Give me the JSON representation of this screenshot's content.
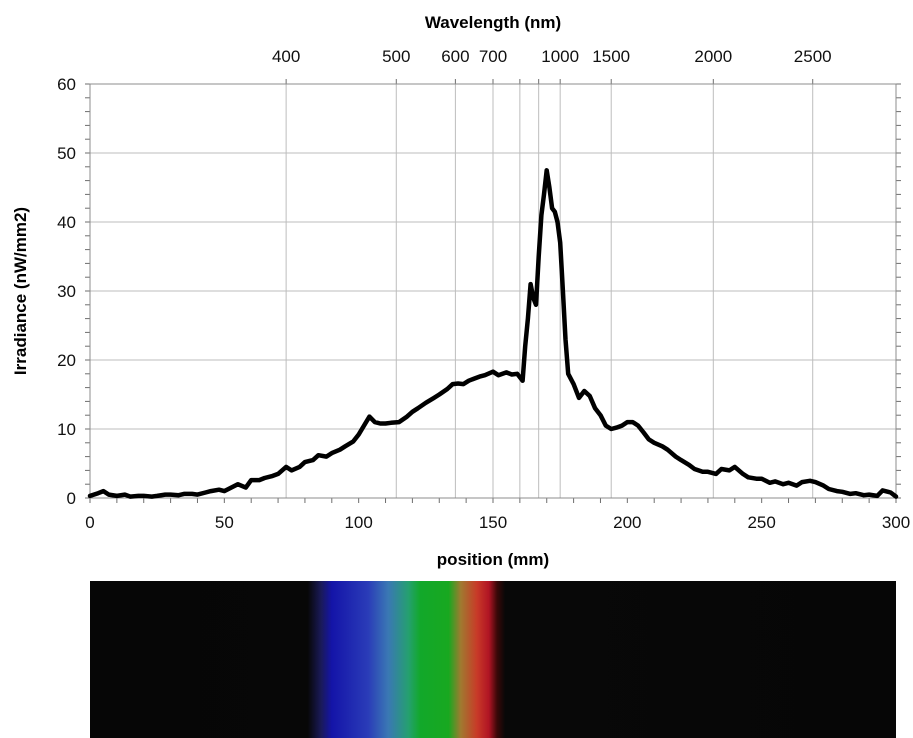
{
  "chart_data": {
    "type": "line",
    "title": "",
    "xlabel": "position (mm)",
    "ylabel": "Irradiance (nW/mm2)",
    "x2label": "Wavelength (nm)",
    "xlim": [
      0,
      300
    ],
    "ylim": [
      0,
      60
    ],
    "x_ticks": [
      0,
      50,
      100,
      150,
      200,
      250,
      300
    ],
    "y_ticks": [
      0,
      10,
      20,
      30,
      40,
      50,
      60
    ],
    "grid": true,
    "wavelength_ticks": [
      {
        "label": "400",
        "position_mm": 73
      },
      {
        "label": "500",
        "position_mm": 114
      },
      {
        "label": "600",
        "position_mm": 136
      },
      {
        "label": "700",
        "position_mm": 150
      },
      {
        "label": "",
        "position_mm": 160
      },
      {
        "label": "",
        "position_mm": 167
      },
      {
        "label": "1000",
        "position_mm": 175
      },
      {
        "label": "1500",
        "position_mm": 194
      },
      {
        "label": "2000",
        "position_mm": 232
      },
      {
        "label": "2500",
        "position_mm": 269
      }
    ],
    "series": [
      {
        "color": "#000000",
        "x": [
          0,
          3,
          5,
          7,
          10,
          13,
          15,
          18,
          20,
          23,
          25,
          28,
          30,
          33,
          35,
          38,
          40,
          43,
          45,
          48,
          50,
          53,
          55,
          58,
          60,
          63,
          65,
          68,
          70,
          73,
          75,
          78,
          80,
          83,
          85,
          88,
          90,
          93,
          95,
          98,
          100,
          102,
          104,
          106,
          108,
          110,
          112,
          115,
          118,
          120,
          122,
          125,
          128,
          130,
          133,
          135,
          137,
          139,
          141,
          143,
          145,
          147,
          150,
          152,
          155,
          157,
          159,
          161,
          162,
          163,
          164,
          165,
          166,
          167,
          168,
          169,
          170,
          171,
          172,
          173,
          174,
          175,
          176,
          177,
          178,
          180,
          182,
          184,
          186,
          188,
          190,
          192,
          194,
          196,
          198,
          200,
          202,
          204,
          206,
          208,
          210,
          213,
          215,
          218,
          220,
          223,
          225,
          228,
          230,
          233,
          235,
          238,
          240,
          243,
          245,
          248,
          250,
          253,
          255,
          258,
          260,
          263,
          265,
          268,
          270,
          273,
          275,
          278,
          280,
          283,
          285,
          288,
          290,
          293,
          295,
          298,
          300
        ],
        "y": [
          0.3,
          0.7,
          1.0,
          0.5,
          0.3,
          0.5,
          0.2,
          0.3,
          0.3,
          0.2,
          0.3,
          0.5,
          0.5,
          0.4,
          0.6,
          0.6,
          0.5,
          0.8,
          1.0,
          1.2,
          1.0,
          1.6,
          2.0,
          1.5,
          2.6,
          2.6,
          2.9,
          3.2,
          3.5,
          4.5,
          4.0,
          4.5,
          5.2,
          5.5,
          6.2,
          6.0,
          6.5,
          7.0,
          7.5,
          8.2,
          9.2,
          10.5,
          11.8,
          11.0,
          10.8,
          10.8,
          10.9,
          11.0,
          11.8,
          12.5,
          13.0,
          13.8,
          14.5,
          15.0,
          15.8,
          16.5,
          16.6,
          16.5,
          17.0,
          17.3,
          17.6,
          17.8,
          18.3,
          17.8,
          18.2,
          17.9,
          18.0,
          17.0,
          22.0,
          26.0,
          31.0,
          29.0,
          28.0,
          35.0,
          41.0,
          44.0,
          47.5,
          45.0,
          42.0,
          41.5,
          40.0,
          37.0,
          30.0,
          23.0,
          18.0,
          16.5,
          14.5,
          15.5,
          14.8,
          13.0,
          12.0,
          10.5,
          10.0,
          10.2,
          10.5,
          11.0,
          11.0,
          10.5,
          9.5,
          8.5,
          8.0,
          7.5,
          7.0,
          6.0,
          5.5,
          4.8,
          4.2,
          3.8,
          3.8,
          3.5,
          4.2,
          4.0,
          4.5,
          3.5,
          3.0,
          2.8,
          2.8,
          2.2,
          2.4,
          2.0,
          2.2,
          1.8,
          2.3,
          2.5,
          2.3,
          1.8,
          1.3,
          1.0,
          0.9,
          0.6,
          0.7,
          0.4,
          0.5,
          0.3,
          1.1,
          0.8,
          0.2
        ]
      }
    ]
  }
}
